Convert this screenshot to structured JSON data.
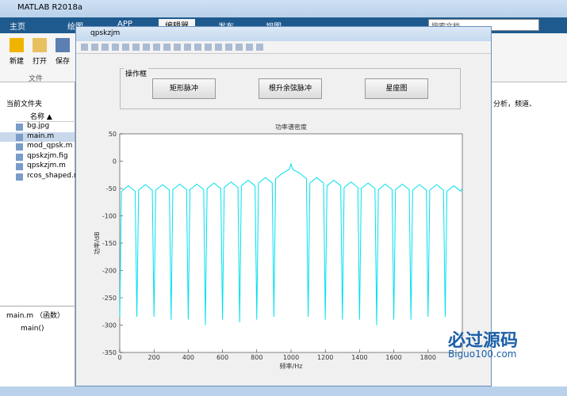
{
  "window": {
    "title": "MATLAB R2018a",
    "tabs": [
      "主页",
      "绘图",
      "APP",
      "编辑器",
      "发布",
      "视图"
    ],
    "search": "搜索文档"
  },
  "toolstrip": {
    "buttons": [
      "新建",
      "打开",
      "保存"
    ],
    "group": "文件"
  },
  "folder": {
    "title": "当前文件夹",
    "column": "名称",
    "files": [
      "bg.jpg",
      "main.m",
      "mod_qpsk.m",
      "qpskzjm.fig",
      "qpskzjm.m",
      "rcos_shaped.m"
    ]
  },
  "details": {
    "title": "main.m （函数）",
    "item": "main()"
  },
  "side_text": "分析，频道、",
  "figure": {
    "title": "qpskzjm",
    "panel": {
      "title": "操作框",
      "buttons": [
        "矩形脉冲",
        "根升余弦脉冲",
        "星座图"
      ]
    },
    "chart_data": {
      "type": "line",
      "title": "功率谱密度",
      "x_label": "频率/Hz",
      "y_label": "功率/dB",
      "color": "#00e0f0",
      "xlim": [
        0,
        2000
      ],
      "xticks": [
        0,
        200,
        400,
        600,
        800,
        1000,
        1200,
        1400,
        1600,
        1800
      ],
      "ylim": [
        -350,
        50
      ],
      "yticks": [
        -350,
        -300,
        -250,
        -200,
        -150,
        -100,
        -50,
        0,
        50
      ],
      "x": [
        0,
        10,
        50,
        90,
        100,
        110,
        150,
        190,
        200,
        210,
        250,
        290,
        300,
        310,
        350,
        390,
        400,
        410,
        450,
        490,
        500,
        510,
        550,
        590,
        600,
        610,
        650,
        690,
        700,
        710,
        750,
        790,
        800,
        810,
        850,
        890,
        900,
        910,
        950,
        990,
        1000,
        1010,
        1050,
        1090,
        1100,
        1110,
        1150,
        1190,
        1200,
        1210,
        1250,
        1290,
        1300,
        1310,
        1350,
        1390,
        1400,
        1410,
        1450,
        1490,
        1500,
        1510,
        1550,
        1590,
        1600,
        1610,
        1650,
        1690,
        1700,
        1710,
        1750,
        1790,
        1800,
        1810,
        1850,
        1890,
        1900,
        1910,
        1950,
        1990,
        2000
      ],
      "values": [
        -285,
        -55,
        -45,
        -55,
        -285,
        -53,
        -43,
        -53,
        -285,
        -53,
        -43,
        -53,
        -290,
        -52,
        -42,
        -52,
        -290,
        -52,
        -42,
        -52,
        -300,
        -50,
        -40,
        -50,
        -290,
        -48,
        -38,
        -48,
        -295,
        -45,
        -35,
        -45,
        -290,
        -40,
        -30,
        -40,
        -285,
        -32,
        -22,
        -15,
        -5,
        -15,
        -22,
        -32,
        -285,
        -40,
        -30,
        -40,
        -290,
        -45,
        -35,
        -45,
        -290,
        -48,
        -38,
        -48,
        -290,
        -50,
        -40,
        -50,
        -300,
        -52,
        -42,
        -52,
        -290,
        -52,
        -42,
        -52,
        -290,
        -53,
        -43,
        -53,
        -285,
        -53,
        -43,
        -53,
        -285,
        -55,
        -45,
        -55,
        -50
      ]
    }
  },
  "watermark": {
    "title": "必过源码",
    "url": "Biguo100.com"
  }
}
